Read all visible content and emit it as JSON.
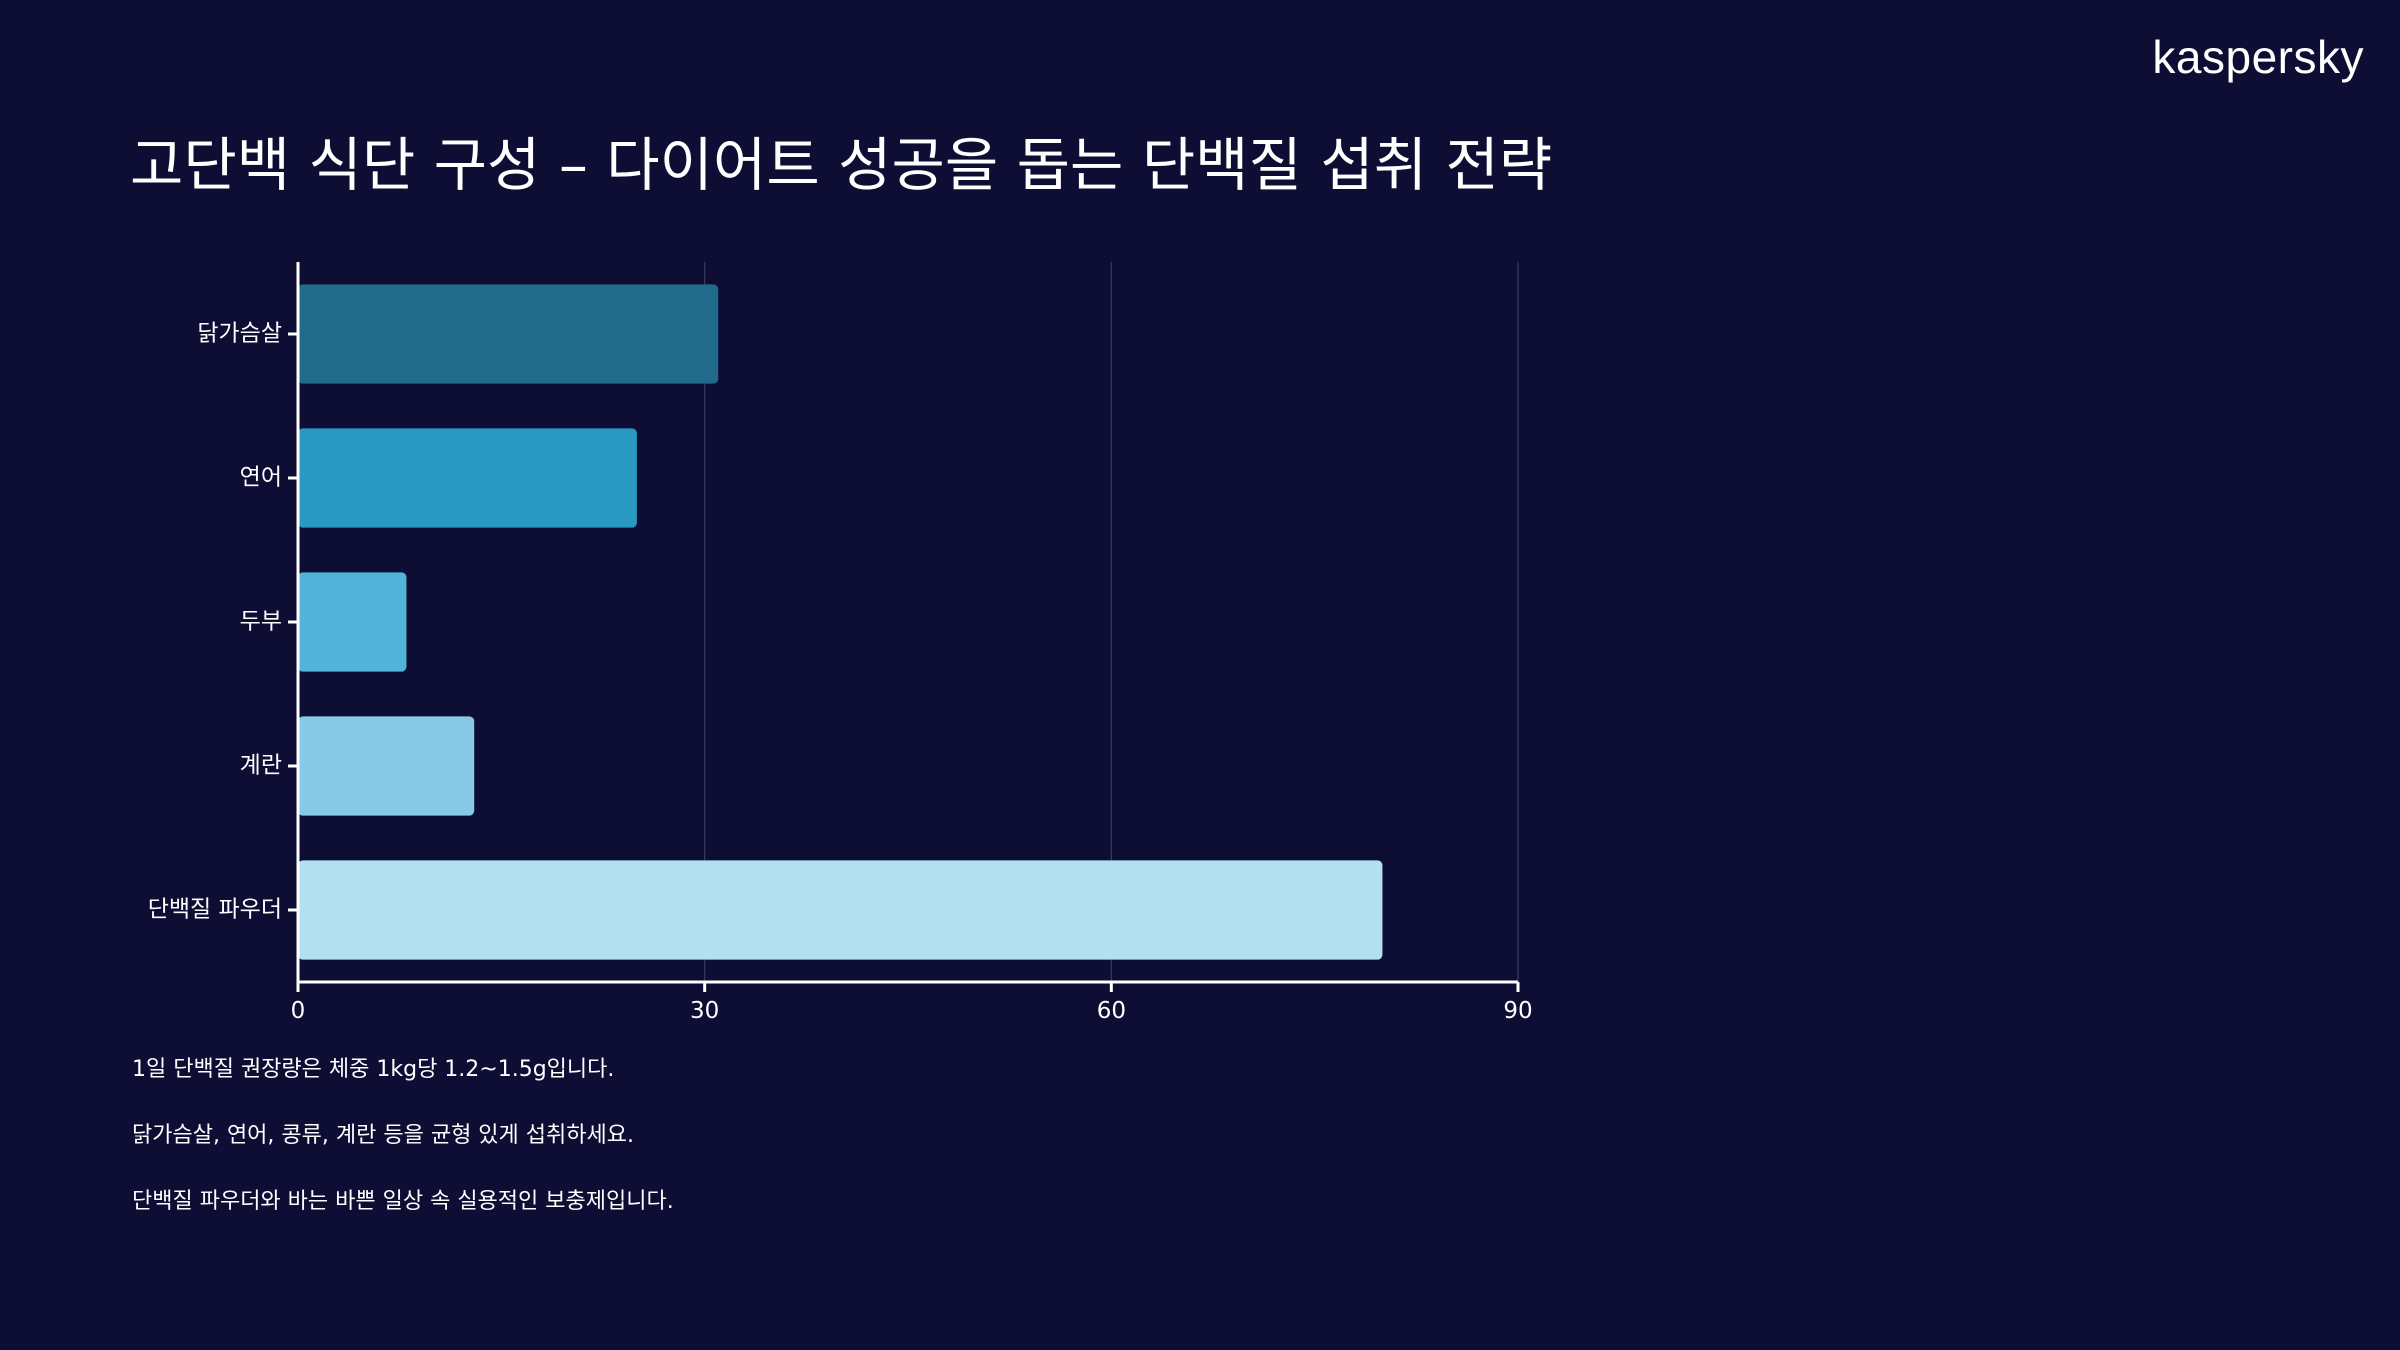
{
  "brand": {
    "logo_text": "kaspersky"
  },
  "title": "고단백 식단 구성 – 다이어트 성공을 돕는 단백질 섭취 전략",
  "chart_data": {
    "type": "bar",
    "orientation": "horizontal",
    "categories": [
      "닭가슴살",
      "연어",
      "두부",
      "계란",
      "단백질 파우더"
    ],
    "values": [
      31,
      25,
      8,
      13,
      80
    ],
    "colors": [
      "#226a89",
      "#2a99c2",
      "#52b4da",
      "#87c9e6",
      "#b5e0f1"
    ],
    "xlim": [
      0,
      90
    ],
    "xticks": [
      0,
      30,
      60,
      90
    ],
    "title": "",
    "xlabel": "",
    "ylabel": "",
    "grid": "vertical"
  },
  "notes": [
    "1일 단백질 권장량은 체중 1kg당 1.2~1.5g입니다.",
    "닭가슴살, 연어, 콩류, 계란 등을 균형 있게 섭취하세요.",
    "단백질 파우더와 바는 바쁜 일상 속 실용적인 보충제입니다."
  ]
}
